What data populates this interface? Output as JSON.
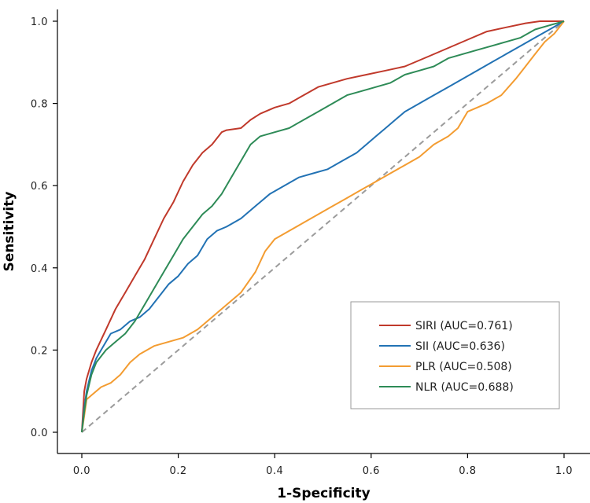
{
  "chart_data": {
    "type": "line",
    "title": "",
    "xlabel": "1-Specificity",
    "ylabel": "Sensitivity",
    "xlim": [
      -0.05,
      1.05
    ],
    "ylim": [
      -0.05,
      1.04
    ],
    "xticks": [
      0.0,
      0.2,
      0.4,
      0.6,
      0.8,
      1.0
    ],
    "yticks": [
      0.0,
      0.2,
      0.4,
      0.6,
      0.8,
      1.0
    ],
    "xtick_labels": [
      "0.0",
      "0.2",
      "0.4",
      "0.6",
      "0.8",
      "1.0"
    ],
    "ytick_labels": [
      "0.0",
      "0.2",
      "0.4",
      "0.6",
      "0.8",
      "1.0"
    ],
    "grid": false,
    "legend_position": "lower-right",
    "diagonal": {
      "x": [
        0,
        1
      ],
      "y": [
        0,
        1
      ],
      "color": "#9b9b9b",
      "style": "dashed"
    },
    "series": [
      {
        "name": "SIRI (AUC=0.761)",
        "color": "#c0392b",
        "x": [
          0,
          0.005,
          0.01,
          0.02,
          0.03,
          0.05,
          0.07,
          0.09,
          0.11,
          0.13,
          0.15,
          0.17,
          0.19,
          0.21,
          0.23,
          0.25,
          0.27,
          0.29,
          0.3,
          0.33,
          0.35,
          0.37,
          0.4,
          0.43,
          0.46,
          0.49,
          0.52,
          0.55,
          0.59,
          0.63,
          0.67,
          0.72,
          0.76,
          0.8,
          0.84,
          0.88,
          0.92,
          0.95,
          1.0
        ],
        "y": [
          0,
          0.1,
          0.13,
          0.17,
          0.2,
          0.25,
          0.3,
          0.34,
          0.38,
          0.42,
          0.47,
          0.52,
          0.56,
          0.61,
          0.65,
          0.68,
          0.7,
          0.73,
          0.735,
          0.74,
          0.76,
          0.775,
          0.79,
          0.8,
          0.82,
          0.84,
          0.85,
          0.86,
          0.87,
          0.88,
          0.89,
          0.915,
          0.935,
          0.955,
          0.975,
          0.985,
          0.995,
          1.0,
          1.0
        ]
      },
      {
        "name": "SII (AUC=0.636)",
        "color": "#2272b4",
        "x": [
          0,
          0.005,
          0.01,
          0.02,
          0.03,
          0.04,
          0.05,
          0.06,
          0.08,
          0.1,
          0.12,
          0.14,
          0.16,
          0.18,
          0.2,
          0.22,
          0.24,
          0.26,
          0.28,
          0.3,
          0.33,
          0.36,
          0.39,
          0.42,
          0.45,
          0.48,
          0.51,
          0.54,
          0.57,
          0.59,
          0.61,
          0.63,
          0.65,
          0.67,
          0.7,
          0.73,
          0.76,
          0.79,
          0.82,
          0.85,
          0.88,
          0.91,
          0.94,
          0.97,
          1.0
        ],
        "y": [
          0,
          0.06,
          0.1,
          0.15,
          0.18,
          0.2,
          0.22,
          0.24,
          0.25,
          0.27,
          0.28,
          0.3,
          0.33,
          0.36,
          0.38,
          0.41,
          0.43,
          0.47,
          0.49,
          0.5,
          0.52,
          0.55,
          0.58,
          0.6,
          0.62,
          0.63,
          0.64,
          0.66,
          0.68,
          0.7,
          0.72,
          0.74,
          0.76,
          0.78,
          0.8,
          0.82,
          0.84,
          0.86,
          0.88,
          0.9,
          0.92,
          0.94,
          0.96,
          0.98,
          1.0
        ]
      },
      {
        "name": "PLR (AUC=0.508)",
        "color": "#f39c31",
        "x": [
          0,
          0.005,
          0.01,
          0.02,
          0.04,
          0.06,
          0.08,
          0.1,
          0.12,
          0.15,
          0.18,
          0.21,
          0.24,
          0.27,
          0.3,
          0.33,
          0.36,
          0.38,
          0.4,
          0.43,
          0.46,
          0.49,
          0.52,
          0.55,
          0.58,
          0.61,
          0.64,
          0.67,
          0.7,
          0.73,
          0.76,
          0.78,
          0.8,
          0.82,
          0.84,
          0.87,
          0.9,
          0.92,
          0.94,
          0.96,
          0.98,
          1.0
        ],
        "y": [
          0,
          0.04,
          0.08,
          0.09,
          0.11,
          0.12,
          0.14,
          0.17,
          0.19,
          0.21,
          0.22,
          0.23,
          0.25,
          0.28,
          0.31,
          0.34,
          0.39,
          0.44,
          0.47,
          0.49,
          0.51,
          0.53,
          0.55,
          0.57,
          0.59,
          0.61,
          0.63,
          0.65,
          0.67,
          0.7,
          0.72,
          0.74,
          0.78,
          0.79,
          0.8,
          0.82,
          0.86,
          0.89,
          0.92,
          0.95,
          0.97,
          1.0
        ]
      },
      {
        "name": "NLR (AUC=0.688)",
        "color": "#2e8b57",
        "x": [
          0,
          0.005,
          0.01,
          0.02,
          0.03,
          0.05,
          0.07,
          0.09,
          0.11,
          0.13,
          0.15,
          0.17,
          0.19,
          0.21,
          0.23,
          0.25,
          0.27,
          0.29,
          0.31,
          0.33,
          0.35,
          0.37,
          0.4,
          0.43,
          0.46,
          0.49,
          0.52,
          0.55,
          0.58,
          0.61,
          0.64,
          0.67,
          0.7,
          0.73,
          0.76,
          0.79,
          0.82,
          0.85,
          0.88,
          0.91,
          0.94,
          0.97,
          1.0
        ],
        "y": [
          0,
          0.05,
          0.09,
          0.14,
          0.17,
          0.2,
          0.22,
          0.24,
          0.27,
          0.31,
          0.35,
          0.39,
          0.43,
          0.47,
          0.5,
          0.53,
          0.55,
          0.58,
          0.62,
          0.66,
          0.7,
          0.72,
          0.73,
          0.74,
          0.76,
          0.78,
          0.8,
          0.82,
          0.83,
          0.84,
          0.85,
          0.87,
          0.88,
          0.89,
          0.91,
          0.92,
          0.93,
          0.94,
          0.95,
          0.96,
          0.98,
          0.99,
          1.0
        ]
      }
    ]
  }
}
